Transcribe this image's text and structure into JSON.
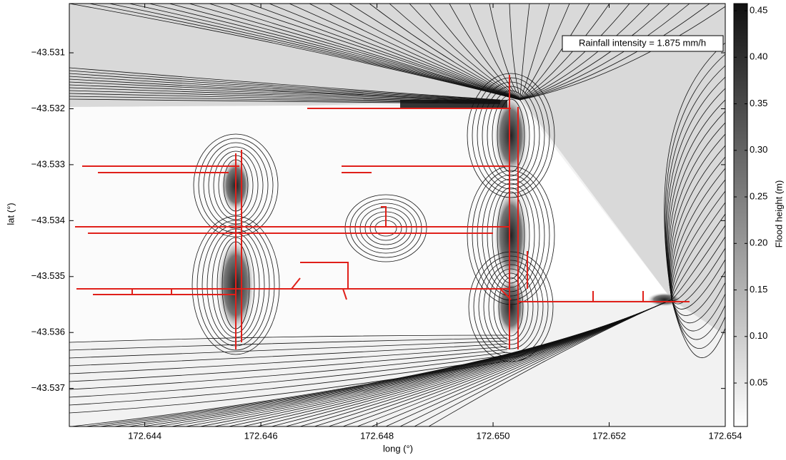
{
  "chart_data": {
    "type": "contour",
    "xlabel": "long (°)",
    "ylabel": "lat (°)",
    "colorbar_label": "Flood height (m)",
    "annotation": "Rainfall intensity = 1.875 mm/h",
    "colormap": "gray_r",
    "xlim": [
      172.6427,
      172.654
    ],
    "ylim": [
      -43.53768,
      -43.53012
    ],
    "clim": [
      0.0033,
      0.4577
    ],
    "xticks": [
      172.644,
      172.646,
      172.648,
      {
        "value": 172.65,
        "label": "172.650"
      },
      172.652,
      172.654
    ],
    "yticks": [
      {
        "value": -43.531,
        "label": "−43.531"
      },
      {
        "value": -43.532,
        "label": "−43.532"
      },
      {
        "value": -43.533,
        "label": "−43.533"
      },
      {
        "value": -43.534,
        "label": "−43.534"
      },
      {
        "value": -43.535,
        "label": "−43.535"
      },
      {
        "value": -43.536,
        "label": "−43.536"
      },
      {
        "value": -43.537,
        "label": "−43.537"
      }
    ],
    "cticks": [
      0.05,
      {
        "value": 0.1,
        "label": "0.10"
      },
      0.15,
      {
        "value": 0.2,
        "label": "0.20"
      },
      0.25,
      {
        "value": 0.3,
        "label": "0.30"
      },
      0.35,
      {
        "value": 0.4,
        "label": "0.40"
      },
      0.45
    ]
  }
}
